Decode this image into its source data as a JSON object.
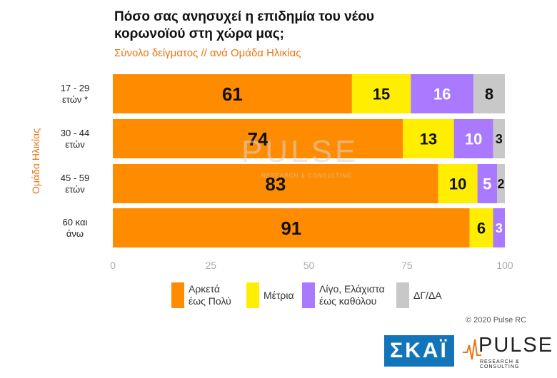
{
  "title": "Πόσο σας ανησυχεί η επιδημία του νέου κορωνοϊού στη χώρα μας;",
  "subtitle": "Σύνολο δείγματος // ανά Ομάδα Ηλικίας",
  "copyright": "© 2020 Pulse RC",
  "watermark": {
    "main": "PULSE",
    "sub": "RESEARCH & CONSULTING"
  },
  "logos": {
    "skai": "ΣΚΑΪ",
    "pulse": "PULSE",
    "pulse_sub": "RESEARCH & CONSULTING"
  },
  "chart_data": {
    "type": "bar",
    "orientation": "horizontal",
    "stacked": true,
    "title": "Πόσο σας ανησυχεί η επιδημία του νέου κορωνοϊού στη χώρα μας;",
    "subtitle": "Σύνολο δείγματος // ανά Ομάδα Ηλικίας",
    "ylabel": "Ομάδα Ηλικίας",
    "xlabel": "",
    "xlim": [
      0,
      100
    ],
    "xticks": [
      0,
      25,
      50,
      75,
      100
    ],
    "grid": false,
    "legend_position": "bottom",
    "categories": [
      [
        "17 - 29",
        "ετών *"
      ],
      [
        "30 - 44",
        "ετών"
      ],
      [
        "45 - 59",
        "ετών"
      ],
      [
        "60 και",
        "άνω"
      ]
    ],
    "series": [
      {
        "name": [
          "Αρκετά",
          "έως Πολύ"
        ],
        "color": "#ff8c00",
        "label_color": "#111111",
        "values": [
          61,
          74,
          83,
          91
        ]
      },
      {
        "name": [
          "Μέτρια"
        ],
        "color": "#ffee00",
        "label_color": "#111111",
        "values": [
          15,
          13,
          10,
          6
        ]
      },
      {
        "name": [
          "Λίγο, Ελάχιστα",
          "έως καθόλου"
        ],
        "color": "#a97aff",
        "label_color": "#ffffff",
        "values": [
          16,
          10,
          5,
          3
        ]
      },
      {
        "name": [
          "ΔΓ/ΔΑ"
        ],
        "color": "#c8c8c8",
        "label_color": "#111111",
        "values": [
          8,
          3,
          2,
          0
        ]
      }
    ]
  }
}
